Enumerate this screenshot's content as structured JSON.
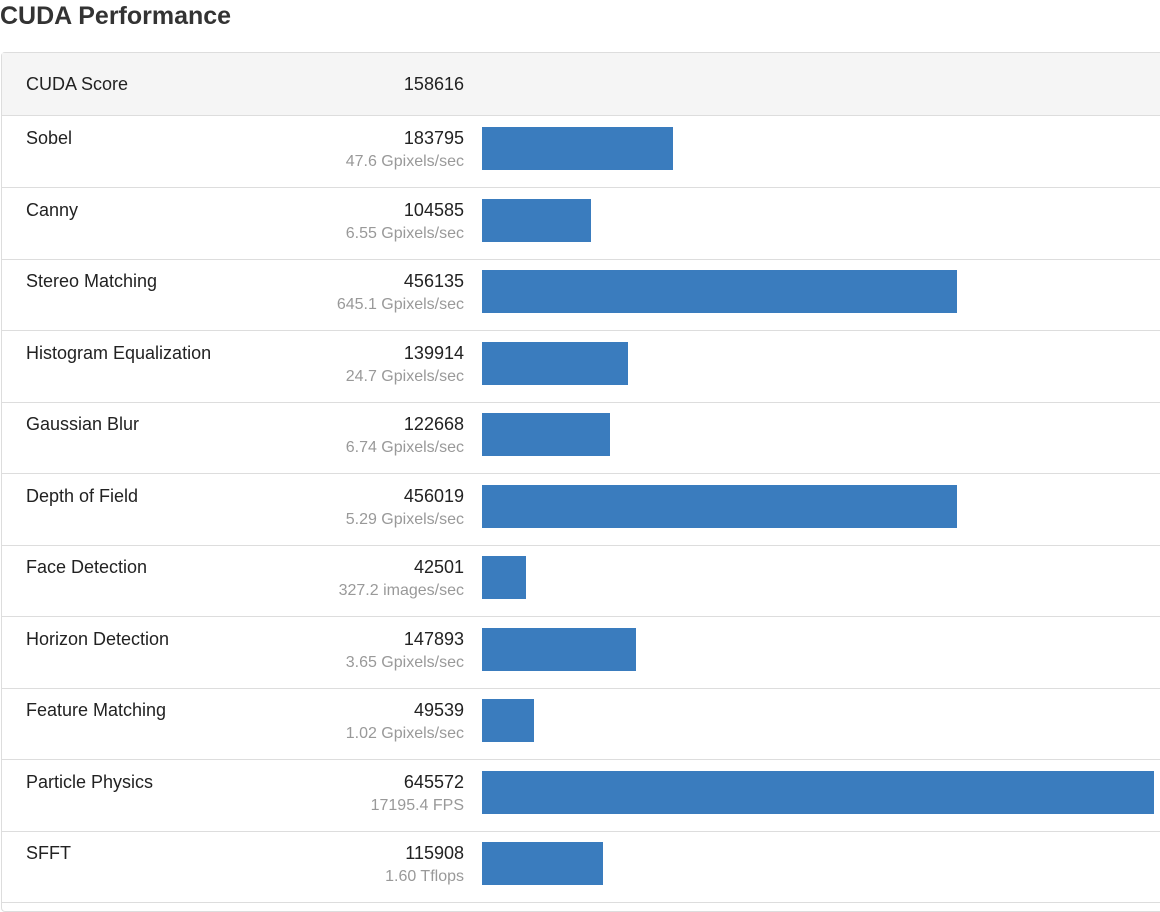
{
  "section": {
    "title": "CUDA Performance"
  },
  "summary": {
    "label": "CUDA Score",
    "score": "158616"
  },
  "bar_color": "#3a7cbe",
  "benchmarks": [
    {
      "name": "Sobel",
      "score": "183795",
      "rate": "47.6 Gpixels/sec",
      "bar_fraction": 0.2847
    },
    {
      "name": "Canny",
      "score": "104585",
      "rate": "6.55 Gpixels/sec",
      "bar_fraction": 0.162
    },
    {
      "name": "Stereo Matching",
      "score": "456135",
      "rate": "645.1 Gpixels/sec",
      "bar_fraction": 0.7066
    },
    {
      "name": "Histogram Equalization",
      "score": "139914",
      "rate": "24.7 Gpixels/sec",
      "bar_fraction": 0.2167
    },
    {
      "name": "Gaussian Blur",
      "score": "122668",
      "rate": "6.74 Gpixels/sec",
      "bar_fraction": 0.19
    },
    {
      "name": "Depth of Field",
      "score": "456019",
      "rate": "5.29 Gpixels/sec",
      "bar_fraction": 0.7064
    },
    {
      "name": "Face Detection",
      "score": "42501",
      "rate": "327.2 images/sec",
      "bar_fraction": 0.0658
    },
    {
      "name": "Horizon Detection",
      "score": "147893",
      "rate": "3.65 Gpixels/sec",
      "bar_fraction": 0.2291
    },
    {
      "name": "Feature Matching",
      "score": "49539",
      "rate": "1.02 Gpixels/sec",
      "bar_fraction": 0.0767
    },
    {
      "name": "Particle Physics",
      "score": "645572",
      "rate": "17195.4 FPS",
      "bar_fraction": 1.0
    },
    {
      "name": "SFFT",
      "score": "115908",
      "rate": "1.60 Tflops",
      "bar_fraction": 0.1795
    }
  ]
}
